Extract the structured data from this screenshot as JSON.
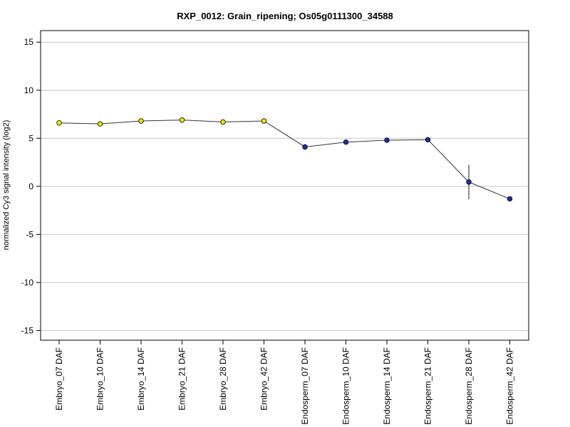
{
  "chart_data": {
    "type": "line",
    "title": "RXP_0012: Grain_ripening; Os05g0111300_34588",
    "xlabel": "",
    "ylabel": "normalized Cy3 signal intensity (log2)",
    "ylim": [
      -16,
      16.2
    ],
    "yticks": [
      -15,
      -10,
      -5,
      0,
      5,
      10,
      15
    ],
    "grid": true,
    "categories": [
      "Embryo_07 DAF",
      "Embryo_10 DAF",
      "Embryo_14 DAF",
      "Embryo_21 DAF",
      "Embryo_28 DAF",
      "Embryo_42 DAF",
      "Endosperm_07 DAF",
      "Endosperm_10 DAF",
      "Endosperm_14 DAF",
      "Endosperm_21 DAF",
      "Endosperm_28 DAF",
      "Endosperm_42 DAF"
    ],
    "values": [
      6.6,
      6.5,
      6.8,
      6.9,
      6.7,
      6.8,
      4.1,
      4.6,
      4.8,
      4.85,
      0.45,
      -1.3
    ],
    "errors": [
      0.15,
      0.1,
      0.1,
      0.1,
      0.1,
      0.1,
      0.1,
      0.1,
      0.1,
      0.1,
      1.8,
      0.1
    ],
    "point_colors": [
      "#f2e600",
      "#f2e600",
      "#f2e600",
      "#f2e600",
      "#f2e600",
      "#f2e600",
      "#1a2fa8",
      "#1a2fa8",
      "#1a2fa8",
      "#1a2fa8",
      "#1a2fa8",
      "#1a2fa8"
    ]
  }
}
